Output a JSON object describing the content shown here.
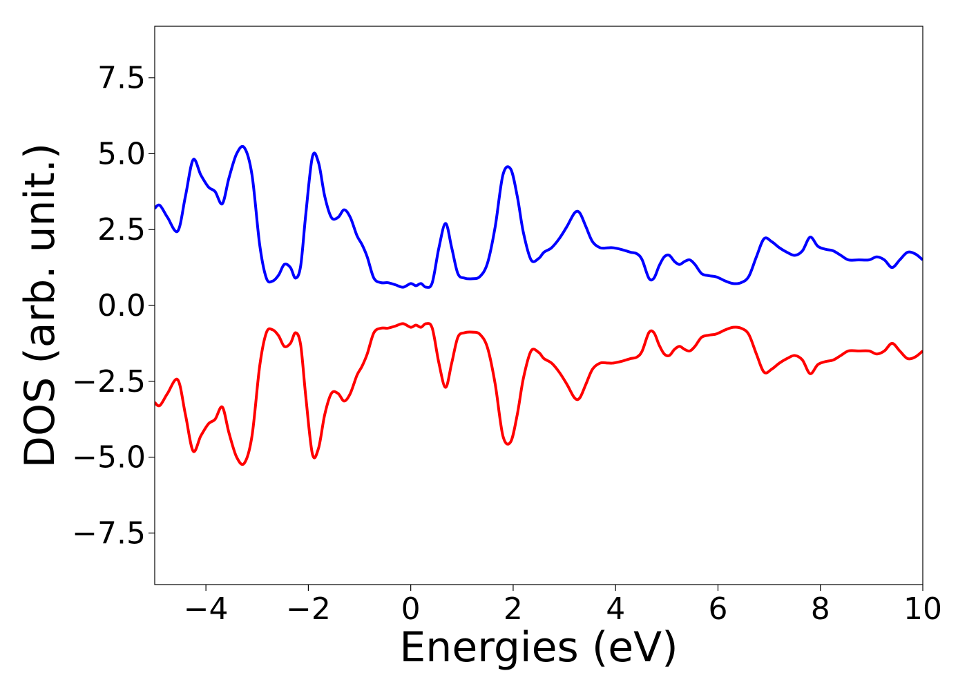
{
  "chart_data": {
    "type": "line",
    "title": "",
    "xlabel": "Energies (eV)",
    "ylabel": "DOS (arb. unit.)",
    "xlim": [
      -5,
      10
    ],
    "ylim": [
      -9.2,
      9.2
    ],
    "xticks": [
      -4,
      -2,
      0,
      2,
      4,
      6,
      8,
      10
    ],
    "xtick_labels": [
      "−4",
      "−2",
      "0",
      "2",
      "4",
      "6",
      "8",
      "10"
    ],
    "yticks": [
      -7.5,
      -5.0,
      -2.5,
      0.0,
      2.5,
      5.0,
      7.5
    ],
    "ytick_labels": [
      "−7.5",
      "−5.0",
      "−2.5",
      "0.0",
      "2.5",
      "5.0",
      "7.5"
    ],
    "grid": false,
    "legend": false,
    "series": [
      {
        "color": "#0000ff",
        "x": [
          -5.0,
          -4.9,
          -4.75,
          -4.55,
          -4.4,
          -4.25,
          -4.1,
          -3.95,
          -3.82,
          -3.68,
          -3.55,
          -3.4,
          -3.25,
          -3.1,
          -2.95,
          -2.82,
          -2.7,
          -2.58,
          -2.47,
          -2.35,
          -2.25,
          -2.15,
          -2.05,
          -1.92,
          -1.8,
          -1.68,
          -1.55,
          -1.42,
          -1.3,
          -1.18,
          -1.05,
          -0.95,
          -0.85,
          -0.72,
          -0.58,
          -0.45,
          -0.3,
          -0.15,
          0.0,
          0.1,
          0.2,
          0.3,
          0.42,
          0.55,
          0.68,
          0.8,
          0.92,
          1.05,
          1.2,
          1.35,
          1.5,
          1.65,
          1.8,
          1.95,
          2.08,
          2.2,
          2.35,
          2.5,
          2.6,
          2.75,
          2.9,
          3.05,
          3.2,
          3.3,
          3.42,
          3.55,
          3.7,
          3.85,
          3.95,
          4.1,
          4.2,
          4.3,
          4.42,
          4.52,
          4.65,
          4.75,
          4.85,
          4.95,
          5.05,
          5.15,
          5.25,
          5.35,
          5.45,
          5.55,
          5.68,
          5.82,
          5.95,
          6.05,
          6.15,
          6.3,
          6.45,
          6.6,
          6.75,
          6.9,
          7.05,
          7.2,
          7.35,
          7.5,
          7.65,
          7.8,
          7.95,
          8.1,
          8.25,
          8.4,
          8.55,
          8.75,
          8.95,
          9.1,
          9.25,
          9.4,
          9.55,
          9.7,
          9.85,
          10.0
        ],
        "y": [
          3.2,
          3.3,
          2.9,
          2.45,
          3.6,
          4.8,
          4.3,
          3.9,
          3.75,
          3.35,
          4.2,
          5.0,
          5.2,
          4.3,
          2.0,
          0.9,
          0.8,
          1.0,
          1.35,
          1.25,
          0.9,
          1.3,
          3.0,
          4.9,
          4.7,
          3.6,
          2.9,
          2.9,
          3.15,
          2.9,
          2.3,
          2.0,
          1.6,
          0.9,
          0.75,
          0.75,
          0.68,
          0.6,
          0.72,
          0.65,
          0.72,
          0.6,
          0.75,
          1.9,
          2.7,
          1.9,
          1.05,
          0.9,
          0.88,
          0.95,
          1.4,
          2.6,
          4.3,
          4.5,
          3.6,
          2.4,
          1.5,
          1.55,
          1.75,
          1.9,
          2.2,
          2.6,
          3.05,
          3.05,
          2.6,
          2.1,
          1.9,
          1.9,
          1.9,
          1.85,
          1.8,
          1.75,
          1.7,
          1.5,
          0.9,
          0.9,
          1.3,
          1.6,
          1.65,
          1.45,
          1.35,
          1.45,
          1.5,
          1.35,
          1.05,
          0.98,
          0.95,
          0.88,
          0.8,
          0.72,
          0.75,
          0.95,
          1.6,
          2.2,
          2.1,
          1.9,
          1.75,
          1.65,
          1.8,
          2.25,
          1.95,
          1.85,
          1.8,
          1.65,
          1.5,
          1.5,
          1.5,
          1.6,
          1.5,
          1.25,
          1.5,
          1.75,
          1.7,
          1.5
        ]
      },
      {
        "color": "#ff0000",
        "x": [
          -5.0,
          -4.9,
          -4.75,
          -4.55,
          -4.4,
          -4.25,
          -4.1,
          -3.95,
          -3.82,
          -3.68,
          -3.55,
          -3.4,
          -3.25,
          -3.1,
          -2.95,
          -2.82,
          -2.7,
          -2.58,
          -2.47,
          -2.35,
          -2.25,
          -2.15,
          -2.05,
          -1.92,
          -1.8,
          -1.68,
          -1.55,
          -1.42,
          -1.3,
          -1.18,
          -1.05,
          -0.95,
          -0.85,
          -0.72,
          -0.58,
          -0.45,
          -0.3,
          -0.15,
          0.0,
          0.1,
          0.2,
          0.3,
          0.42,
          0.55,
          0.68,
          0.8,
          0.92,
          1.05,
          1.2,
          1.35,
          1.5,
          1.65,
          1.8,
          1.95,
          2.08,
          2.2,
          2.35,
          2.5,
          2.6,
          2.75,
          2.9,
          3.05,
          3.2,
          3.3,
          3.42,
          3.55,
          3.7,
          3.85,
          3.95,
          4.1,
          4.2,
          4.3,
          4.42,
          4.52,
          4.65,
          4.75,
          4.85,
          4.95,
          5.05,
          5.15,
          5.25,
          5.35,
          5.45,
          5.55,
          5.68,
          5.82,
          5.95,
          6.05,
          6.15,
          6.3,
          6.45,
          6.6,
          6.75,
          6.9,
          7.05,
          7.2,
          7.35,
          7.5,
          7.65,
          7.8,
          7.95,
          8.1,
          8.25,
          8.4,
          8.55,
          8.75,
          8.95,
          9.1,
          9.25,
          9.4,
          9.55,
          9.7,
          9.85,
          10.0
        ],
        "y": [
          -3.2,
          -3.3,
          -2.9,
          -2.45,
          -3.6,
          -4.8,
          -4.3,
          -3.9,
          -3.75,
          -3.35,
          -4.2,
          -5.0,
          -5.2,
          -4.3,
          -2.0,
          -0.9,
          -0.8,
          -1.0,
          -1.35,
          -1.25,
          -0.9,
          -1.3,
          -3.0,
          -4.9,
          -4.7,
          -3.6,
          -2.9,
          -2.9,
          -3.15,
          -2.9,
          -2.3,
          -2.0,
          -1.6,
          -0.9,
          -0.75,
          -0.75,
          -0.68,
          -0.6,
          -0.72,
          -0.65,
          -0.72,
          -0.6,
          -0.75,
          -1.9,
          -2.7,
          -1.9,
          -1.05,
          -0.9,
          -0.88,
          -0.95,
          -1.4,
          -2.6,
          -4.3,
          -4.5,
          -3.6,
          -2.4,
          -1.5,
          -1.55,
          -1.75,
          -1.9,
          -2.2,
          -2.6,
          -3.05,
          -3.05,
          -2.6,
          -2.1,
          -1.9,
          -1.9,
          -1.9,
          -1.85,
          -1.8,
          -1.75,
          -1.7,
          -1.5,
          -0.9,
          -0.9,
          -1.3,
          -1.6,
          -1.65,
          -1.45,
          -1.35,
          -1.45,
          -1.5,
          -1.35,
          -1.05,
          -0.98,
          -0.95,
          -0.88,
          -0.8,
          -0.72,
          -0.75,
          -0.95,
          -1.6,
          -2.2,
          -2.1,
          -1.9,
          -1.75,
          -1.65,
          -1.8,
          -2.25,
          -1.95,
          -1.85,
          -1.8,
          -1.65,
          -1.5,
          -1.5,
          -1.5,
          -1.6,
          -1.5,
          -1.25,
          -1.5,
          -1.75,
          -1.7,
          -1.5
        ]
      }
    ]
  }
}
